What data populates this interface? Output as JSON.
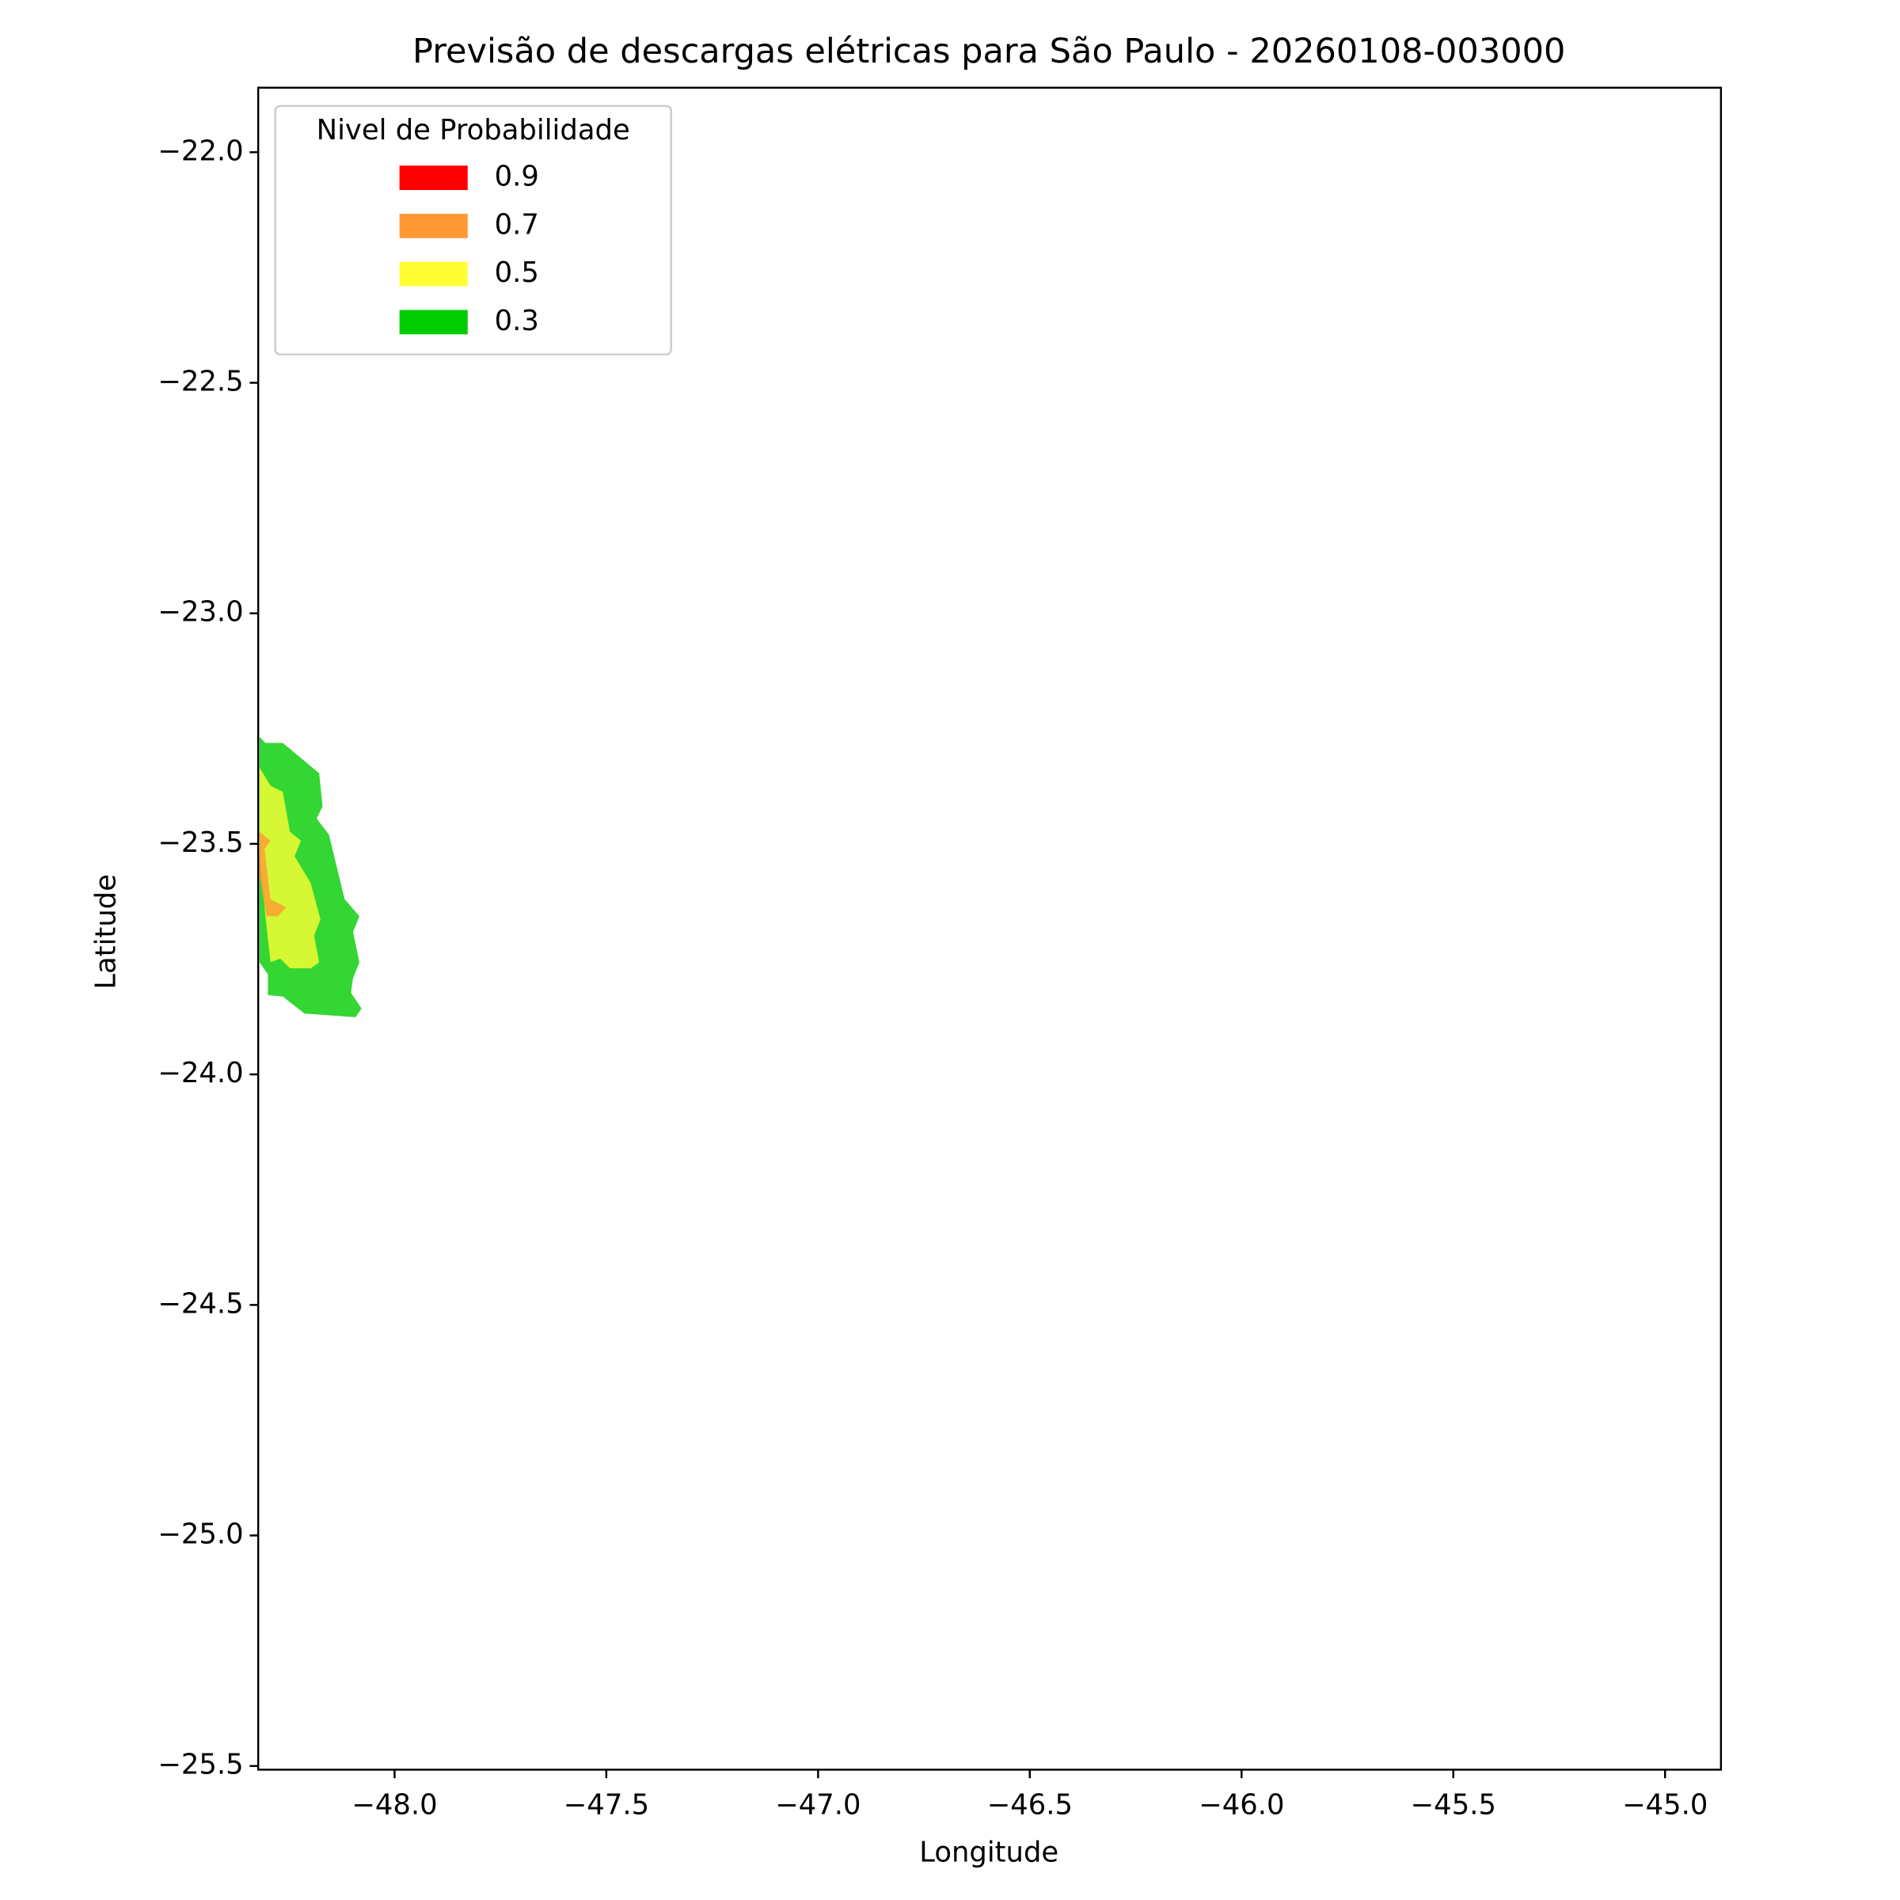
{
  "chart_data": {
    "type": "contourf",
    "title": "Previsão de descargas elétricas para São Paulo - 20260108-003000",
    "x_label": "Longitude",
    "y_label": "Latitude",
    "legend_title": "Nivel de Probabilidade",
    "legend": "upper left",
    "alpha": 0.8,
    "xlim": [
      -48.322,
      -44.868
    ],
    "ylim": [
      -25.508,
      -21.86
    ],
    "xticks": [
      {
        "value": -48.0,
        "label": "−48.0"
      },
      {
        "value": -47.5,
        "label": "−47.5"
      },
      {
        "value": -47.0,
        "label": "−47.0"
      },
      {
        "value": -46.5,
        "label": "−46.5"
      },
      {
        "value": -46.0,
        "label": "−46.0"
      },
      {
        "value": -45.5,
        "label": "−45.5"
      },
      {
        "value": -45.0,
        "label": "−45.0"
      }
    ],
    "yticks": [
      {
        "value": -22.0,
        "label": "−22.0"
      },
      {
        "value": -22.5,
        "label": "−22.5"
      },
      {
        "value": -23.0,
        "label": "−23.0"
      },
      {
        "value": -23.5,
        "label": "−23.5"
      },
      {
        "value": -24.0,
        "label": "−24.0"
      },
      {
        "value": -24.5,
        "label": "−24.5"
      },
      {
        "value": -25.0,
        "label": "−25.0"
      },
      {
        "value": -25.5,
        "label": "−25.5"
      }
    ],
    "series": [
      {
        "name": "0.9",
        "color": "#ff0000",
        "x": [],
        "y": []
      },
      {
        "name": "0.7",
        "color": "#ff9933",
        "x": [
          -48.319,
          -48.293,
          -48.307,
          -48.293,
          -48.256,
          -48.276,
          -48.302,
          -48.319
        ],
        "y": [
          -23.474,
          -23.493,
          -23.511,
          -23.62,
          -23.638,
          -23.657,
          -23.657,
          -23.572
        ]
      },
      {
        "name": "0.5",
        "color": "#ffff33",
        "x": [
          -48.319,
          -48.293,
          -48.264,
          -48.247,
          -48.221,
          -48.236,
          -48.198,
          -48.175,
          -48.19,
          -48.178,
          -48.198,
          -48.247,
          -48.27,
          -48.293,
          -48.305,
          -48.319
        ],
        "y": [
          -23.334,
          -23.374,
          -23.387,
          -23.474,
          -23.493,
          -23.527,
          -23.585,
          -23.664,
          -23.699,
          -23.757,
          -23.77,
          -23.77,
          -23.749,
          -23.757,
          -23.657,
          -23.519
        ]
      },
      {
        "name": "0.3",
        "color": "#00cc00",
        "x": [
          -48.319,
          -48.305,
          -48.264,
          -48.178,
          -48.17,
          -48.184,
          -48.155,
          -48.118,
          -48.083,
          -48.098,
          -48.083,
          -48.098,
          -48.103,
          -48.078,
          -48.092,
          -48.213,
          -48.264,
          -48.299,
          -48.299,
          -48.319
        ],
        "y": [
          -23.268,
          -23.281,
          -23.281,
          -23.347,
          -23.419,
          -23.445,
          -23.48,
          -23.62,
          -23.657,
          -23.691,
          -23.757,
          -23.791,
          -23.823,
          -23.857,
          -23.876,
          -23.868,
          -23.831,
          -23.828,
          -23.783,
          -23.757
        ]
      }
    ]
  }
}
